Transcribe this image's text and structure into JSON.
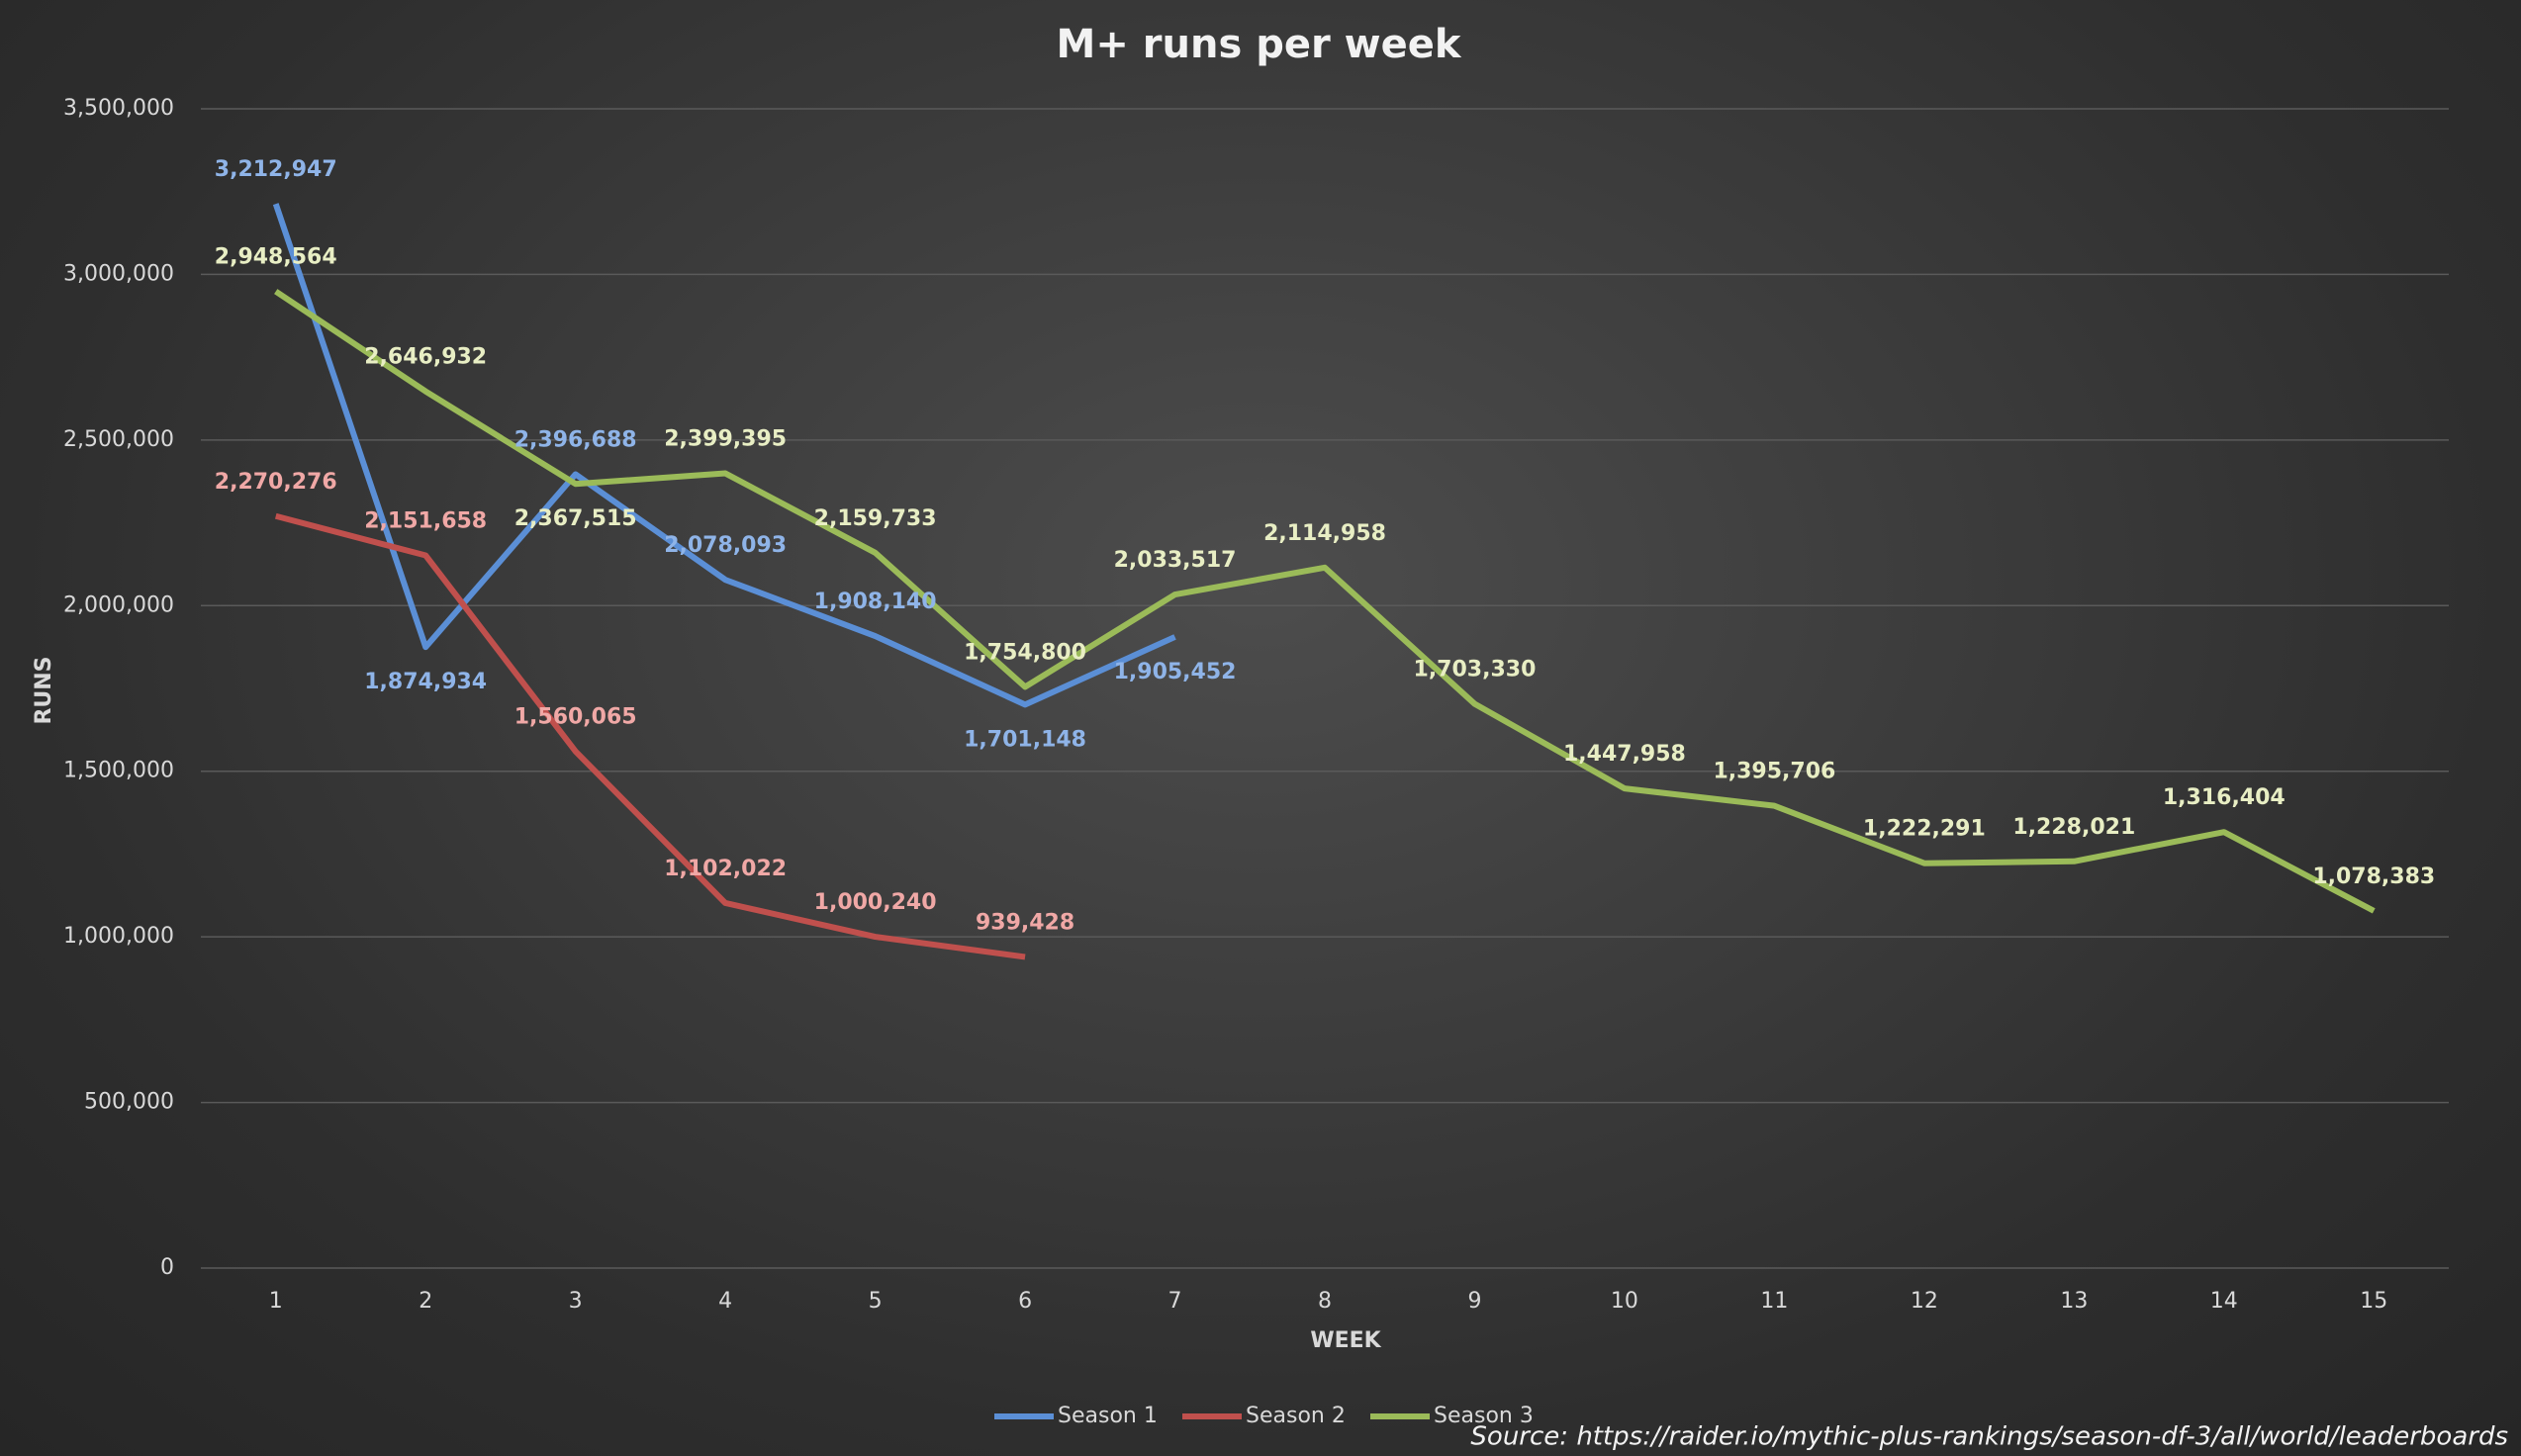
{
  "chart_data": {
    "type": "line",
    "title": "M+ runs  per week",
    "x_label": "WEEK",
    "y_label": "RUNS",
    "source": "Source: https://raider.io/mythic-plus-rankings/season-df-3/all/world/leaderboards",
    "categories": [
      "1",
      "2",
      "3",
      "4",
      "5",
      "6",
      "7",
      "8",
      "9",
      "10",
      "11",
      "12",
      "13",
      "14",
      "15"
    ],
    "series": [
      {
        "name": "Season 1",
        "color": "#5b8fd6",
        "label_color": "#8fb4e8",
        "values": [
          3212947,
          1874934,
          2396688,
          2078093,
          1908140,
          1701148,
          1905452,
          null,
          null,
          null,
          null,
          null,
          null,
          null,
          null
        ],
        "value_labels": [
          "3,212,947",
          "1,874,934",
          "2,396,688",
          "2,078,093",
          "1,908,140",
          "1,701,148",
          "1,905,452",
          null,
          null,
          null,
          null,
          null,
          null,
          null,
          null
        ]
      },
      {
        "name": "Season 2",
        "color": "#c0504d",
        "label_color": "#f0a8a6",
        "values": [
          2270276,
          2151658,
          1560065,
          1102022,
          1000240,
          939428,
          null,
          null,
          null,
          null,
          null,
          null,
          null,
          null,
          null
        ],
        "value_labels": [
          "2,270,276",
          "2,151,658",
          "1,560,065",
          "1,102,022",
          "1,000,240",
          "939,428",
          null,
          null,
          null,
          null,
          null,
          null,
          null,
          null,
          null
        ]
      },
      {
        "name": "Season 3",
        "color": "#9bbb59",
        "label_color": "#e8eec4",
        "values": [
          2948564,
          2646932,
          2367515,
          2399395,
          2159733,
          1754800,
          2033517,
          2114958,
          1703330,
          1447958,
          1395706,
          1222291,
          1228021,
          1316404,
          1078383
        ],
        "value_labels": [
          "2,948,564",
          "2,646,932",
          "2,367,515",
          "2,399,395",
          "2,159,733",
          "1,754,800",
          "2,033,517",
          "2,114,958",
          "1,703,330",
          "1,447,958",
          "1,395,706",
          "1,222,291",
          "1,228,021",
          "1,316,404",
          "1,078,383"
        ]
      }
    ],
    "ylim": [
      0,
      3500000
    ],
    "yticks": [
      0,
      {
        "value": 500000,
        "label": "500,000"
      },
      {
        "value": 1000000,
        "label": "1,000,000"
      },
      {
        "value": 1500000,
        "label": "1,500,000"
      },
      {
        "value": 2000000,
        "label": "2,000,000"
      },
      {
        "value": 2500000,
        "label": "2,500,000"
      },
      {
        "value": 3000000,
        "label": "3,000,000"
      },
      {
        "value": 3500000,
        "label": "3,500,000"
      }
    ],
    "grid": true,
    "legend": "bottom"
  }
}
